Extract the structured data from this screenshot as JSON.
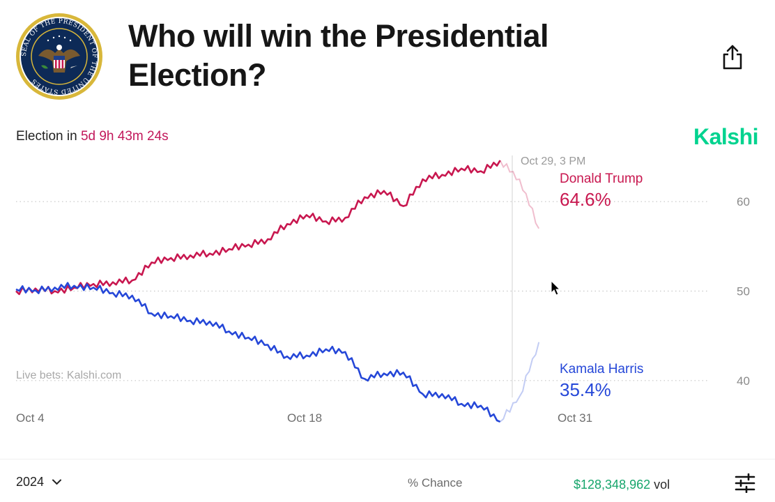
{
  "header": {
    "title": "Who will win the Presidential Election?",
    "seal_text": "SEAL OF THE PRESIDENT OF THE UNITED STATES"
  },
  "countdown": {
    "prefix": "Election in",
    "time": "5d 9h 43m 24s"
  },
  "brand": "Kalshi",
  "icons": {
    "share": "share-icon",
    "settings": "sliders-icon",
    "dropdown": "chevron-down-icon",
    "cursor": "mouse-pointer-icon"
  },
  "colors": {
    "trump": "#c8174f",
    "harris": "#2547d8",
    "brand": "#00d38f",
    "countdown": "#c2185b",
    "volume": "#15a56b"
  },
  "chart_data": {
    "type": "line",
    "x_axis_type": "date",
    "x_ticks": [
      "Oct 4",
      "Oct 18",
      "Oct 31"
    ],
    "y_ticks": [
      40,
      50,
      60
    ],
    "ylim": [
      35,
      65
    ],
    "grid": "dotted horizontal",
    "watermark": "Live bets: Kalshi.com",
    "hover": {
      "label": "Oct 29, 3 PM",
      "date": "2024-10-29T15:00"
    },
    "series": [
      {
        "name": "Donald Trump",
        "color": "#c8174f",
        "display_value": "64.6%",
        "points": [
          [
            "2024-10-04",
            50
          ],
          [
            "2024-10-05",
            50.3
          ],
          [
            "2024-10-06",
            50
          ],
          [
            "2024-10-07",
            50.4
          ],
          [
            "2024-10-08",
            50.8
          ],
          [
            "2024-10-09",
            51
          ],
          [
            "2024-10-10",
            51.2
          ],
          [
            "2024-10-11",
            53.2
          ],
          [
            "2024-10-12",
            53.7
          ],
          [
            "2024-10-13",
            54
          ],
          [
            "2024-10-14",
            54.2
          ],
          [
            "2024-10-15",
            54.7
          ],
          [
            "2024-10-16",
            55.2
          ],
          [
            "2024-10-17",
            55.8
          ],
          [
            "2024-10-18",
            57.5
          ],
          [
            "2024-10-19",
            58.5
          ],
          [
            "2024-10-20",
            57.8
          ],
          [
            "2024-10-21",
            58.2
          ],
          [
            "2024-10-22",
            60.5
          ],
          [
            "2024-10-23",
            61.2
          ],
          [
            "2024-10-24",
            59.5
          ],
          [
            "2024-10-25",
            62.5
          ],
          [
            "2024-10-26",
            63
          ],
          [
            "2024-10-27",
            63.7
          ],
          [
            "2024-10-28",
            63.4
          ],
          [
            "2024-10-29",
            64.6
          ],
          [
            "2024-10-30",
            62.5
          ],
          [
            "2024-10-31",
            57
          ]
        ]
      },
      {
        "name": "Kamala Harris",
        "color": "#2547d8",
        "display_value": "35.4%",
        "points": [
          [
            "2024-10-04",
            50.2
          ],
          [
            "2024-10-05",
            50.1
          ],
          [
            "2024-10-06",
            50.4
          ],
          [
            "2024-10-07",
            50.6
          ],
          [
            "2024-10-08",
            50.4
          ],
          [
            "2024-10-09",
            49.8
          ],
          [
            "2024-10-10",
            49.5
          ],
          [
            "2024-10-11",
            47.5
          ],
          [
            "2024-10-12",
            47.2
          ],
          [
            "2024-10-13",
            46.7
          ],
          [
            "2024-10-14",
            46.6
          ],
          [
            "2024-10-15",
            45.5
          ],
          [
            "2024-10-16",
            44.8
          ],
          [
            "2024-10-17",
            44
          ],
          [
            "2024-10-18",
            42.7
          ],
          [
            "2024-10-19",
            42.8
          ],
          [
            "2024-10-20",
            43.5
          ],
          [
            "2024-10-21",
            43.2
          ],
          [
            "2024-10-22",
            40.2
          ],
          [
            "2024-10-23",
            40.8
          ],
          [
            "2024-10-24",
            40.9
          ],
          [
            "2024-10-25",
            38.5
          ],
          [
            "2024-10-26",
            38.5
          ],
          [
            "2024-10-27",
            37.4
          ],
          [
            "2024-10-28",
            37.2
          ],
          [
            "2024-10-29",
            35.4
          ],
          [
            "2024-10-30",
            38.2
          ],
          [
            "2024-10-31",
            44.3
          ]
        ]
      }
    ]
  },
  "footer": {
    "year": "2024",
    "mode": "% Chance",
    "volume_amount": "$128,348,962",
    "volume_suffix": "vol"
  }
}
